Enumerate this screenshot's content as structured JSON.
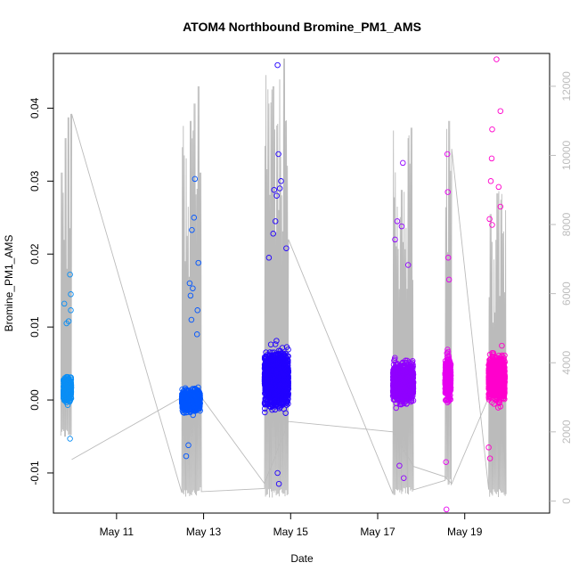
{
  "chart_data": {
    "type": "scatter",
    "title": "ATOM4 Northbound Bromine_PM1_AMS",
    "xlabel": "Date",
    "ylabel": "Bromine_PM1_AMS",
    "x_ticks": [
      "May 11",
      "May 13",
      "May 15",
      "May 17",
      "May 19"
    ],
    "y_left_ticks": [
      "-0.01",
      "0.00",
      "0.01",
      "0.02",
      "0.03",
      "0.04"
    ],
    "y_right_ticks": [
      "0",
      "2000",
      "4000",
      "6000",
      "8000",
      "10000",
      "12000"
    ],
    "ylim_left": [
      -0.0155,
      0.0475
    ],
    "ylim_right": [
      -350,
      12950
    ],
    "xlim_days": [
      9.55,
      20.95
    ],
    "x_origin_date": "May 1",
    "grid": false,
    "legend": "none",
    "groups": [
      {
        "day_start": 9.78,
        "day_end": 9.96,
        "color": "#0a8ef5",
        "center": 0.0015,
        "spread": 0.0022,
        "n": 520,
        "outliers": [
          [
            9.93,
            0.0172
          ],
          [
            9.95,
            0.0145
          ],
          [
            9.95,
            0.0123
          ],
          [
            9.8,
            0.0132
          ],
          [
            9.93,
            -0.0053
          ],
          [
            9.85,
            0.0105
          ],
          [
            9.9,
            0.0108
          ]
        ]
      },
      {
        "day_start": 12.5,
        "day_end": 12.92,
        "color": "#0055ff",
        "center": 0.0,
        "spread": 0.002,
        "n": 720,
        "outliers": [
          [
            12.8,
            0.0303
          ],
          [
            12.78,
            0.025
          ],
          [
            12.73,
            0.0233
          ],
          [
            12.88,
            0.0188
          ],
          [
            12.75,
            0.0153
          ],
          [
            12.68,
            0.016
          ],
          [
            12.7,
            0.0143
          ],
          [
            12.86,
            0.0123
          ],
          [
            12.72,
            0.011
          ],
          [
            12.6,
            -0.0077
          ],
          [
            12.65,
            -0.0062
          ],
          [
            12.85,
            0.009
          ]
        ]
      },
      {
        "day_start": 14.4,
        "day_end": 14.95,
        "color": "#2200ff",
        "center": 0.003,
        "spread": 0.005,
        "n": 1500,
        "outliers": [
          [
            14.7,
            0.0459
          ],
          [
            14.72,
            0.0337
          ],
          [
            14.78,
            0.03
          ],
          [
            14.75,
            0.029
          ],
          [
            14.62,
            0.0288
          ],
          [
            14.68,
            0.028
          ],
          [
            14.65,
            0.0245
          ],
          [
            14.6,
            0.0228
          ],
          [
            14.7,
            -0.01
          ],
          [
            14.73,
            -0.0115
          ],
          [
            14.9,
            0.0208
          ],
          [
            14.5,
            0.0195
          ]
        ]
      },
      {
        "day_start": 17.35,
        "day_end": 17.82,
        "color": "#9000ff",
        "center": 0.0025,
        "spread": 0.0035,
        "n": 1250,
        "outliers": [
          [
            17.58,
            0.0325
          ],
          [
            17.45,
            0.0245
          ],
          [
            17.55,
            0.0238
          ],
          [
            17.4,
            0.022
          ],
          [
            17.6,
            -0.0107
          ],
          [
            17.7,
            0.0185
          ],
          [
            17.5,
            -0.009
          ]
        ]
      },
      {
        "day_start": 18.55,
        "day_end": 18.68,
        "color": "#e600f0",
        "center": 0.003,
        "spread": 0.004,
        "n": 420,
        "outliers": [
          [
            18.6,
            0.0337
          ],
          [
            18.61,
            0.0285
          ],
          [
            18.58,
            -0.015
          ],
          [
            18.62,
            0.0195
          ],
          [
            18.64,
            0.0165
          ],
          [
            18.57,
            -0.0085
          ]
        ]
      },
      {
        "day_start": 19.55,
        "day_end": 19.92,
        "color": "#ff00cc",
        "center": 0.003,
        "spread": 0.004,
        "n": 1100,
        "outliers": [
          [
            19.73,
            0.0467
          ],
          [
            19.82,
            0.0396
          ],
          [
            19.63,
            0.0371
          ],
          [
            19.62,
            0.0331
          ],
          [
            19.6,
            0.03
          ],
          [
            19.78,
            0.0292
          ],
          [
            19.82,
            0.0265
          ],
          [
            19.57,
            0.0248
          ],
          [
            19.63,
            0.024
          ],
          [
            19.55,
            -0.0065
          ],
          [
            19.58,
            -0.008
          ]
        ]
      }
    ],
    "altitude_series": {
      "name": "",
      "color": "#bbbbbb",
      "axis": "right",
      "segments": [
        {
          "day_start": 9.72,
          "day_end": 9.97,
          "low": 1800,
          "high": 10000,
          "peaks": [
            [
              9.75,
              9500
            ],
            [
              9.82,
              10500
            ],
            [
              9.9,
              11100
            ],
            [
              9.96,
              11200
            ]
          ]
        },
        {
          "day_start": 12.5,
          "day_end": 12.95,
          "low": 100,
          "high": 11500,
          "peaks": [
            [
              12.55,
              10000
            ],
            [
              12.7,
              11000
            ],
            [
              12.8,
              11500
            ],
            [
              12.88,
              12000
            ],
            [
              12.92,
              9500
            ]
          ]
        },
        {
          "day_start": 14.4,
          "day_end": 14.95,
          "low": 100,
          "high": 12700,
          "peaks": [
            [
              14.5,
              11500
            ],
            [
              14.6,
              12000
            ],
            [
              14.75,
              12200
            ],
            [
              14.85,
              12800
            ],
            [
              14.9,
              11000
            ]
          ]
        },
        {
          "day_start": 17.35,
          "day_end": 17.82,
          "low": 100,
          "high": 10800,
          "peaks": [
            [
              17.4,
              8000
            ],
            [
              17.55,
              9000
            ],
            [
              17.7,
              10500
            ],
            [
              17.78,
              10800
            ]
          ]
        },
        {
          "day_start": 18.55,
          "day_end": 18.7,
          "low": 400,
          "high": 11000,
          "peaks": [
            [
              18.58,
              8500
            ],
            [
              18.65,
              11000
            ]
          ]
        },
        {
          "day_start": 19.55,
          "day_end": 19.95,
          "low": 100,
          "high": 9000,
          "peaks": [
            [
              19.6,
              8300
            ],
            [
              19.75,
              8900
            ],
            [
              19.85,
              8700
            ]
          ]
        }
      ],
      "connectors": [
        [
          9.97,
          1200
        ],
        [
          12.5,
          3000
        ],
        [
          12.95,
          3000
        ],
        [
          14.4,
          500
        ],
        [
          14.95,
          2300
        ],
        [
          17.35,
          2000
        ],
        [
          17.82,
          1000
        ],
        [
          18.55,
          700
        ],
        [
          18.7,
          500
        ],
        [
          19.55,
          3000
        ]
      ]
    }
  }
}
